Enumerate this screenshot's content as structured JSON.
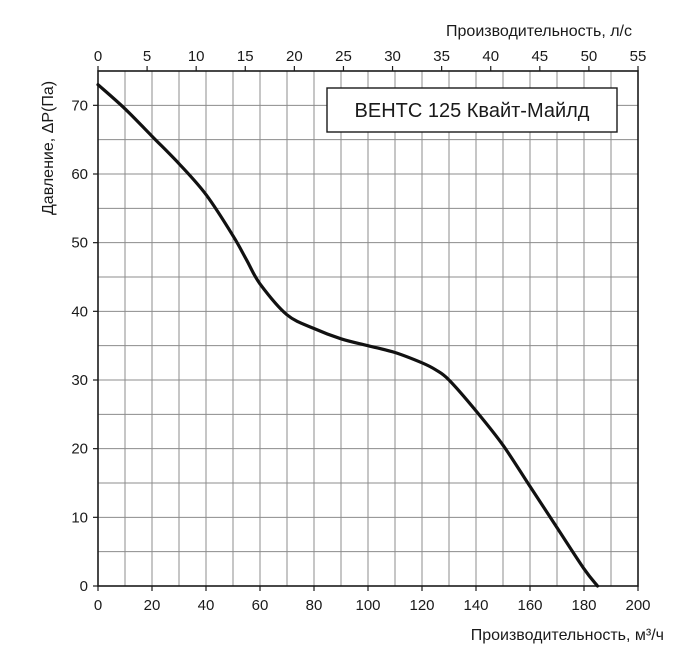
{
  "chart_data": {
    "type": "line",
    "title": "ВЕНТС 125 Квайт-Майлд",
    "xlabel": "Производительность, м³/ч",
    "x2label": "Производительность, л/с",
    "ylabel": "Давление, ΔР(Па)",
    "xlim": [
      0,
      200
    ],
    "x2lim": [
      0,
      55
    ],
    "ylim": [
      0,
      75
    ],
    "x_ticks": [
      0,
      20,
      40,
      60,
      80,
      100,
      120,
      140,
      160,
      180,
      200
    ],
    "x2_ticks": [
      0,
      5,
      10,
      15,
      20,
      25,
      30,
      35,
      40,
      45,
      50,
      55
    ],
    "y_ticks": [
      0,
      10,
      20,
      30,
      40,
      50,
      60,
      70
    ],
    "grid": true,
    "series": [
      {
        "x": [
          0,
          10,
          20,
          30,
          40,
          50,
          55,
          60,
          70,
          80,
          90,
          100,
          110,
          120,
          125,
          130,
          140,
          150,
          160,
          170,
          180,
          185
        ],
        "values": [
          73,
          69.5,
          65.5,
          61.5,
          57,
          51,
          47.5,
          44,
          39.5,
          37.5,
          36,
          35,
          34,
          32.5,
          31.5,
          30,
          25.5,
          20.5,
          14.5,
          8.5,
          2.5,
          0
        ]
      }
    ]
  }
}
